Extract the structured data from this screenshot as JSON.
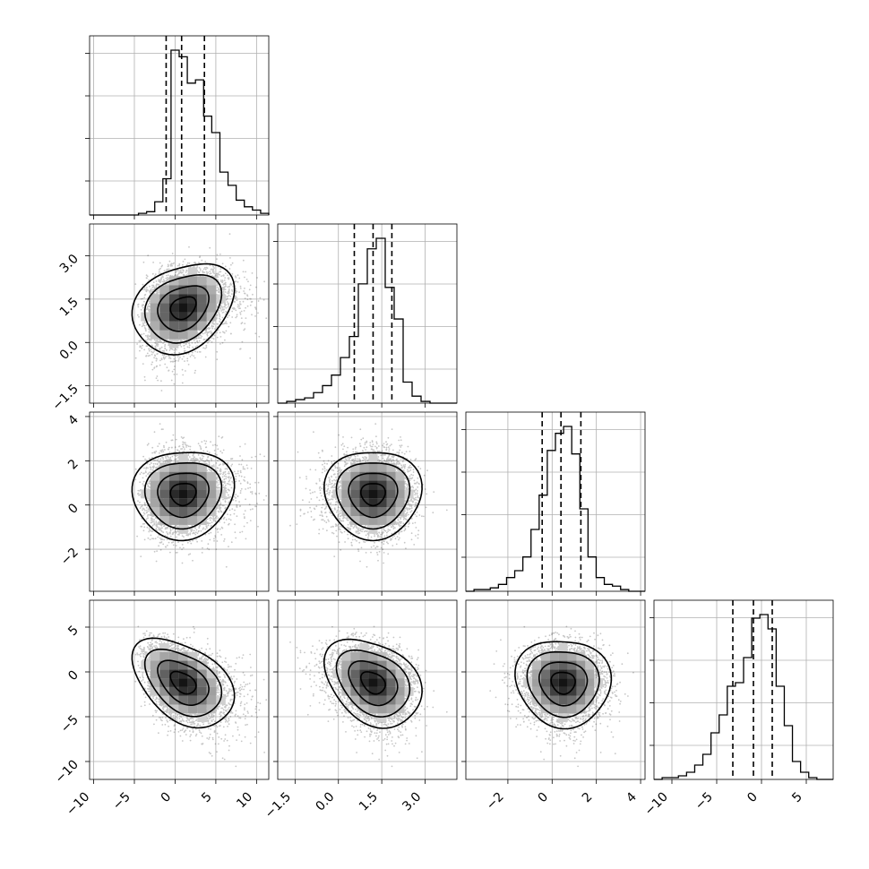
{
  "chart_data": {
    "type": "corner",
    "parameters": 4,
    "axes": [
      {
        "ticks": [
          -10,
          -5,
          0,
          5,
          10
        ],
        "tick_labels": [
          "−10",
          "−5",
          "0",
          "5",
          "10"
        ],
        "range": [
          -10.5,
          11.5
        ]
      },
      {
        "ticks": [
          -1.5,
          0.0,
          1.5,
          3.0
        ],
        "tick_labels": [
          "−1.5",
          "0.0",
          "1.5",
          "3.0"
        ],
        "range": [
          -2.1,
          4.1
        ]
      },
      {
        "ticks": [
          -2,
          0,
          2,
          4
        ],
        "tick_labels": [
          "−2",
          "0",
          "2",
          "4"
        ],
        "range": [
          -3.9,
          4.2
        ]
      },
      {
        "ticks": [
          -10,
          -5,
          0,
          5
        ],
        "tick_labels": [
          "−10",
          "−5",
          "0",
          "5"
        ],
        "range": [
          -12.0,
          8.0
        ]
      }
    ],
    "distributions": [
      {
        "mean": 1.0,
        "sd": 2.6,
        "skew": 0.9
      },
      {
        "mean": 1.2,
        "sd": 0.7,
        "skew": -0.4
      },
      {
        "mean": 0.5,
        "sd": 0.9,
        "skew": 0.0
      },
      {
        "mean": -1.2,
        "sd": 2.2,
        "skew": -0.4
      }
    ],
    "histograms": [
      {
        "bins": [
          -10.5,
          11.5
        ],
        "counts": [
          0,
          0,
          0,
          0,
          0,
          0,
          1,
          2,
          8,
          22,
          100,
          96,
          80,
          82,
          60,
          50,
          26,
          18,
          9,
          5,
          3,
          1
        ]
      },
      {
        "bins": [
          -2.1,
          4.1
        ],
        "counts": [
          0,
          1,
          2,
          3,
          6,
          10,
          16,
          26,
          38,
          68,
          88,
          94,
          66,
          48,
          12,
          4,
          1,
          0,
          0,
          0
        ]
      },
      {
        "bins": [
          -3.9,
          4.2
        ],
        "counts": [
          0,
          1,
          1,
          2,
          4,
          8,
          12,
          20,
          36,
          56,
          82,
          92,
          96,
          80,
          48,
          20,
          8,
          4,
          3,
          1,
          0,
          0
        ]
      },
      {
        "bins": [
          -12.0,
          8.0
        ],
        "counts": [
          0,
          1,
          1,
          2,
          4,
          8,
          14,
          26,
          36,
          52,
          54,
          68,
          90,
          92,
          84,
          52,
          30,
          10,
          4,
          1,
          0,
          0
        ]
      }
    ],
    "quantiles": [
      [
        -1.1,
        0.8,
        3.6
      ],
      [
        0.55,
        1.2,
        1.85
      ],
      [
        -0.45,
        0.4,
        1.3
      ],
      [
        -3.2,
        -0.9,
        1.2
      ]
    ],
    "pairs": [
      {
        "x": 0,
        "y": 1,
        "rho": 0.25
      },
      {
        "x": 0,
        "y": 2,
        "rho": 0.05
      },
      {
        "x": 1,
        "y": 2,
        "rho": 0.0
      },
      {
        "x": 0,
        "y": 3,
        "rho": -0.4
      },
      {
        "x": 1,
        "y": 3,
        "rho": -0.3
      },
      {
        "x": 2,
        "y": 3,
        "rho": -0.05
      }
    ],
    "contour_levels_sigma": [
      0.5,
      1.0,
      1.5,
      2.0
    ],
    "scatter_samples": 4500,
    "grid": true,
    "colors": {
      "line": "#000000",
      "grid": "#b0b0b0",
      "background": "#ffffff"
    }
  }
}
